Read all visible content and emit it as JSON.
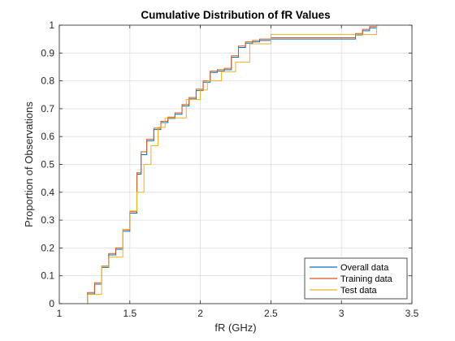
{
  "chart_data": {
    "type": "line",
    "subtype": "stairs",
    "title": "Cumulative Distribution of fR Values",
    "xlabel": "fR (GHz)",
    "ylabel": "Proportion of Observations",
    "xlim": [
      1,
      3.5
    ],
    "ylim": [
      0,
      1
    ],
    "xticks": [
      1,
      1.5,
      2,
      2.5,
      3,
      3.5
    ],
    "xtick_labels": [
      "1",
      "1.5",
      "2",
      "2.5",
      "3",
      "3.5"
    ],
    "yticks": [
      0,
      0.1,
      0.2,
      0.3,
      0.4,
      0.5,
      0.6,
      0.7,
      0.8,
      0.9,
      1
    ],
    "ytick_labels": [
      "0",
      "0.1",
      "0.2",
      "0.3",
      "0.4",
      "0.5",
      "0.6",
      "0.7",
      "0.8",
      "0.9",
      "1"
    ],
    "grid": true,
    "legend_position": "bottom-right",
    "series": [
      {
        "name": "Overall data",
        "color": "#0072BD",
        "x": [
          1.2,
          1.25,
          1.3,
          1.35,
          1.4,
          1.45,
          1.5,
          1.55,
          1.58,
          1.62,
          1.67,
          1.72,
          1.77,
          1.82,
          1.87,
          1.92,
          1.97,
          2.02,
          2.07,
          2.12,
          2.17,
          2.22,
          2.27,
          2.32,
          2.37,
          2.42,
          2.5,
          3.1,
          3.15,
          3.2,
          3.25
        ],
        "y": [
          0.035,
          0.07,
          0.13,
          0.175,
          0.195,
          0.26,
          0.325,
          0.465,
          0.535,
          0.585,
          0.625,
          0.65,
          0.665,
          0.68,
          0.71,
          0.735,
          0.765,
          0.795,
          0.83,
          0.835,
          0.84,
          0.885,
          0.92,
          0.935,
          0.94,
          0.945,
          0.95,
          0.965,
          0.98,
          0.99,
          1.0
        ]
      },
      {
        "name": "Training data",
        "color": "#D95319",
        "x": [
          1.2,
          1.25,
          1.3,
          1.35,
          1.4,
          1.45,
          1.5,
          1.55,
          1.58,
          1.62,
          1.67,
          1.72,
          1.77,
          1.82,
          1.87,
          1.92,
          1.97,
          2.02,
          2.07,
          2.12,
          2.17,
          2.22,
          2.27,
          2.32,
          2.37,
          2.42,
          2.5,
          3.1,
          3.15,
          3.2,
          3.25
        ],
        "y": [
          0.04,
          0.075,
          0.135,
          0.18,
          0.2,
          0.265,
          0.33,
          0.47,
          0.545,
          0.59,
          0.63,
          0.655,
          0.67,
          0.685,
          0.715,
          0.74,
          0.77,
          0.8,
          0.835,
          0.84,
          0.845,
          0.89,
          0.925,
          0.94,
          0.945,
          0.95,
          0.955,
          0.97,
          0.985,
          0.995,
          1.0
        ]
      },
      {
        "name": "Test data",
        "color": "#EDB120",
        "x": [
          1.2,
          1.3,
          1.35,
          1.45,
          1.5,
          1.55,
          1.6,
          1.65,
          1.7,
          1.75,
          1.85,
          1.9,
          2.0,
          2.05,
          2.15,
          2.25,
          2.35,
          2.5,
          3.1,
          3.15,
          3.25
        ],
        "y": [
          0.033,
          0.133,
          0.167,
          0.267,
          0.333,
          0.4,
          0.5,
          0.567,
          0.633,
          0.667,
          0.667,
          0.733,
          0.767,
          0.8,
          0.833,
          0.867,
          0.933,
          0.967,
          0.967,
          0.967,
          1.0
        ]
      }
    ]
  }
}
